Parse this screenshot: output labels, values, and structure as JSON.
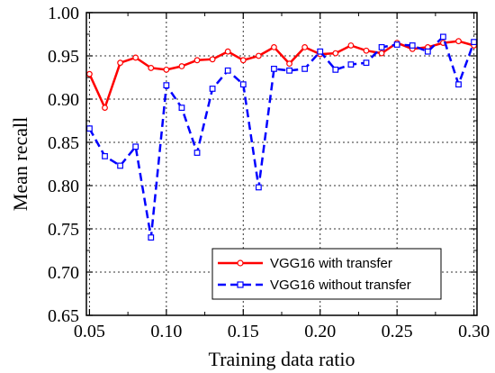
{
  "chart_data": {
    "type": "line",
    "xlabel": "Training data ratio",
    "ylabel": "Mean recall",
    "xlim": [
      0.048,
      0.302
    ],
    "ylim": [
      0.65,
      1.0
    ],
    "xticks": [
      0.05,
      0.1,
      0.15,
      0.2,
      0.25,
      0.3
    ],
    "xtick_labels": [
      "0.05",
      "0.10",
      "0.15",
      "0.20",
      "0.25",
      "0.30"
    ],
    "yticks": [
      0.65,
      0.7,
      0.75,
      0.8,
      0.85,
      0.9,
      0.95,
      1.0
    ],
    "ytick_labels": [
      "0.65",
      "0.70",
      "0.75",
      "0.80",
      "0.85",
      "0.90",
      "0.95",
      "1.00"
    ],
    "grid": true,
    "legend_position": "bottom-right",
    "x": [
      0.05,
      0.06,
      0.07,
      0.08,
      0.09,
      0.1,
      0.11,
      0.12,
      0.13,
      0.14,
      0.15,
      0.16,
      0.17,
      0.18,
      0.19,
      0.2,
      0.21,
      0.22,
      0.23,
      0.24,
      0.25,
      0.26,
      0.27,
      0.28,
      0.29,
      0.3
    ],
    "series": [
      {
        "name": "VGG16 with transfer",
        "color": "#ff0000",
        "line_style": "solid",
        "marker": "circle",
        "values": [
          0.929,
          0.89,
          0.942,
          0.948,
          0.936,
          0.934,
          0.938,
          0.945,
          0.946,
          0.955,
          0.945,
          0.95,
          0.96,
          0.941,
          0.96,
          0.952,
          0.953,
          0.962,
          0.956,
          0.953,
          0.965,
          0.958,
          0.96,
          0.965,
          0.967,
          0.962
        ]
      },
      {
        "name": "VGG16 without transfer",
        "color": "#0000ff",
        "line_style": "dashed",
        "marker": "square",
        "values": [
          0.866,
          0.834,
          0.823,
          0.845,
          0.74,
          0.916,
          0.89,
          0.838,
          0.912,
          0.933,
          0.917,
          0.798,
          0.935,
          0.933,
          0.935,
          0.955,
          0.934,
          0.94,
          0.942,
          0.96,
          0.963,
          0.962,
          0.955,
          0.972,
          0.917,
          0.966
        ]
      }
    ]
  }
}
